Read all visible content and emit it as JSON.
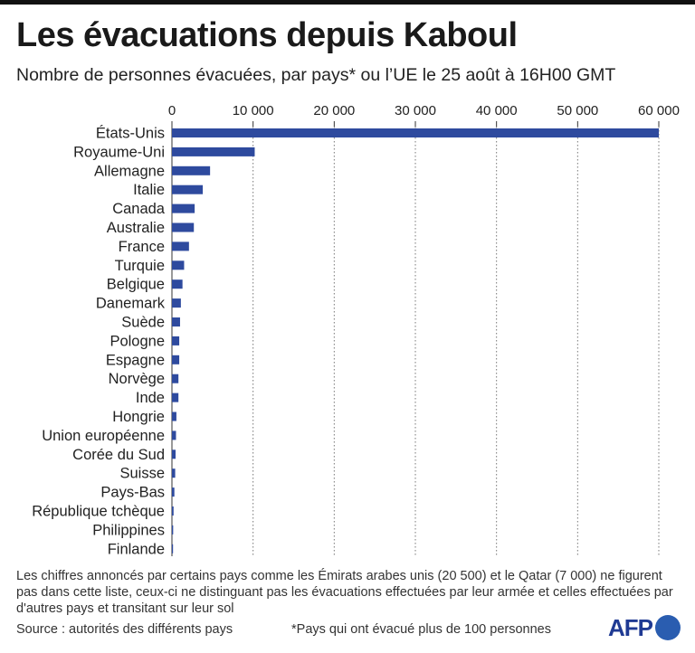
{
  "header": {
    "title": "Les évacuations depuis Kaboul",
    "subtitle": "Nombre de personnes évacuées, par pays* ou l’UE le 25 août à 16H00 GMT"
  },
  "footer": {
    "note": "Les chiffres annoncés par certains pays comme les Émirats arabes unis (20 500) et le Qatar (7 000) ne figurent pas dans cette liste, ceux-ci ne distinguant pas les évacuations effectuées par leur armée et celles effectuées par d'autres pays et transitant sur leur sol",
    "source": "Source : autorités des différents pays",
    "footnote": "*Pays qui ont évacué plus de 100 personnes",
    "logo": "AFP"
  },
  "chart_data": {
    "type": "bar",
    "orientation": "horizontal",
    "title": "Les évacuations depuis Kaboul",
    "subtitle": "Nombre de personnes évacuées, par pays* ou l’UE le 25 août à 16H00 GMT",
    "categories": [
      "États-Unis",
      "Royaume-Uni",
      "Allemagne",
      "Italie",
      "Canada",
      "Australie",
      "France",
      "Turquie",
      "Belgique",
      "Danemark",
      "Suède",
      "Pologne",
      "Espagne",
      "Norvège",
      "Inde",
      "Hongrie",
      "Union européenne",
      "Corée du Sud",
      "Suisse",
      "Pays-Bas",
      "République tchèque",
      "Philippines",
      "Finlande"
    ],
    "values": [
      60000,
      10200,
      4700,
      3800,
      2800,
      2700,
      2100,
      1500,
      1300,
      1100,
      1000,
      900,
      900,
      800,
      800,
      550,
      500,
      450,
      400,
      300,
      200,
      150,
      120
    ],
    "xticks": [
      0,
      10000,
      20000,
      30000,
      40000,
      50000,
      60000
    ],
    "xtick_labels": [
      "0",
      "10 000",
      "20 000",
      "30 000",
      "40 000",
      "50 000",
      "60 000"
    ],
    "xlim": [
      0,
      60000
    ],
    "xaxis_position": "top",
    "grid": "vertical dotted",
    "bar_color": "#2e4a9e",
    "xlabel": "",
    "ylabel": ""
  }
}
